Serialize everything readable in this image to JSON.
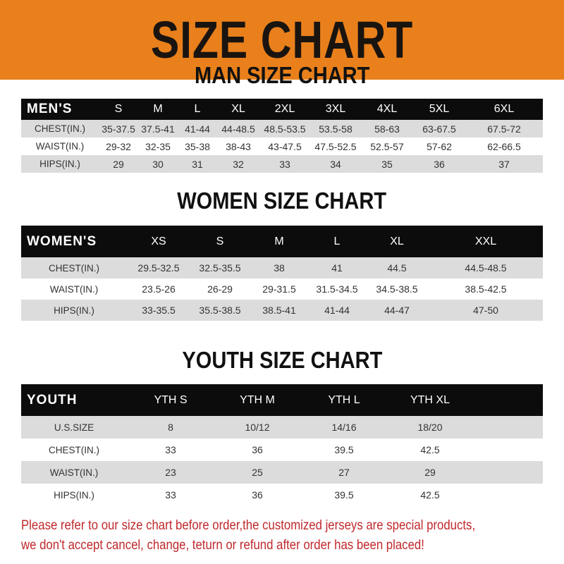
{
  "banner": {
    "title": "SIZE CHART",
    "color": "#e9801b"
  },
  "men": {
    "title": "MAN SIZE CHART",
    "header": [
      "MEN'S",
      "S",
      "M",
      "L",
      "XL",
      "2XL",
      "3XL",
      "4XL",
      "5XL",
      "6XL"
    ],
    "rows": [
      [
        "CHEST(IN.)",
        "35-37.5",
        "37.5-41",
        "41-44",
        "44-48.5",
        "48.5-53.5",
        "53.5-58",
        "58-63",
        "63-67.5",
        "67.5-72"
      ],
      [
        "WAIST(IN.)",
        "29-32",
        "32-35",
        "35-38",
        "38-43",
        "43-47.5",
        "47.5-52.5",
        "52.5-57",
        "57-62",
        "62-66.5"
      ],
      [
        "HIPS(IN.)",
        "29",
        "30",
        "31",
        "32",
        "33",
        "34",
        "35",
        "36",
        "37"
      ]
    ]
  },
  "women": {
    "title": "WOMEN SIZE CHART",
    "header": [
      "WOMEN'S",
      "XS",
      "S",
      "M",
      "L",
      "XL",
      "XXL"
    ],
    "rows": [
      [
        "CHEST(IN.)",
        "29.5-32.5",
        "32.5-35.5",
        "38",
        "41",
        "44.5",
        "44.5-48.5"
      ],
      [
        "WAIST(IN.)",
        "23.5-26",
        "26-29",
        "29-31.5",
        "31.5-34.5",
        "34.5-38.5",
        "38.5-42.5"
      ],
      [
        "HIPS(IN.)",
        "33-35.5",
        "35.5-38.5",
        "38.5-41",
        "41-44",
        "44-47",
        "47-50"
      ]
    ]
  },
  "youth": {
    "title": "YOUTH SIZE CHART",
    "header": [
      "YOUTH",
      "YTH S",
      "YTH M",
      "YTH L",
      "YTH XL"
    ],
    "rows": [
      [
        "U.S.SIZE",
        "8",
        "10/12",
        "14/16",
        "18/20"
      ],
      [
        "CHEST(IN.)",
        "33",
        "36",
        "39.5",
        "42.5"
      ],
      [
        "WAIST(IN.)",
        "23",
        "25",
        "27",
        "29"
      ],
      [
        "HIPS(IN.)",
        "33",
        "36",
        "39.5",
        "42.5"
      ]
    ]
  },
  "footer": {
    "line1": "Please refer to our size chart before order,the customized jerseys are special products,",
    "line2": "we don't accept cancel, change, teturn or refund after order has been placed!",
    "color": "#c0282c"
  }
}
